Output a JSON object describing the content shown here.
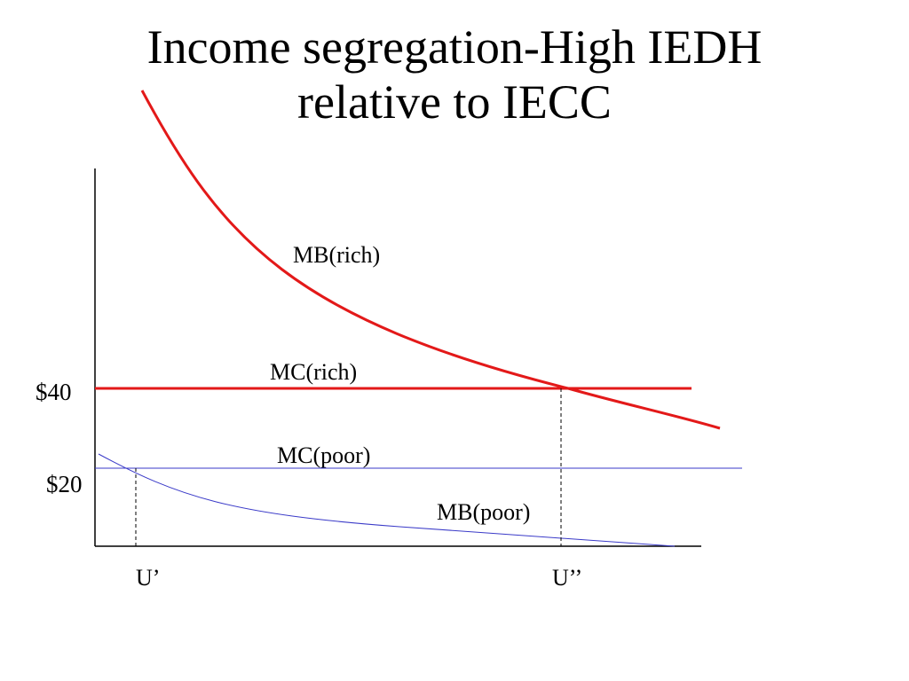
{
  "title": {
    "line1": "Income segregation-High IEDH",
    "line2": "relative to IECC"
  },
  "labels": {
    "mb_rich": "MB(rich)",
    "mc_rich": "MC(rich)",
    "mc_poor": "MC(poor)",
    "mb_poor": "MB(poor)",
    "price_high": "$40",
    "price_low": "$20",
    "u_prime": "U’",
    "u_double_prime": "U’’"
  },
  "colors": {
    "rich": "#e31919",
    "poor": "#3a3ac8",
    "axis": "#000000"
  }
}
